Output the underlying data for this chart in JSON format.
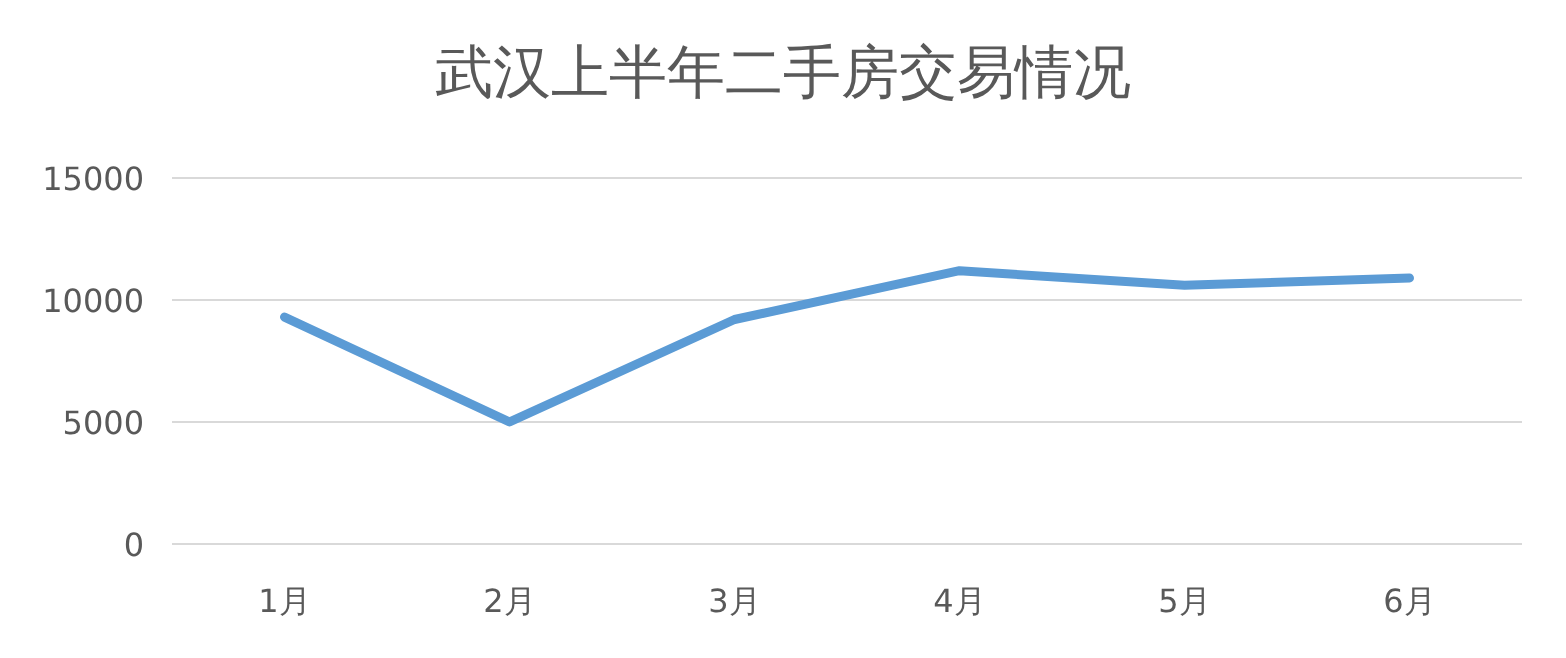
{
  "chart_data": {
    "type": "line",
    "title": "武汉上半年二手房交易情况",
    "categories": [
      "1月",
      "2月",
      "3月",
      "4月",
      "5月",
      "6月"
    ],
    "series": [
      {
        "color": "#5b9bd5",
        "values": [
          9300,
          5000,
          9200,
          11200,
          10600,
          10900
        ]
      }
    ],
    "ylim": [
      0,
      15000
    ],
    "yticks": [
      0,
      5000,
      10000,
      15000
    ],
    "grid": "y",
    "marker": "none",
    "line_style": "solid"
  }
}
